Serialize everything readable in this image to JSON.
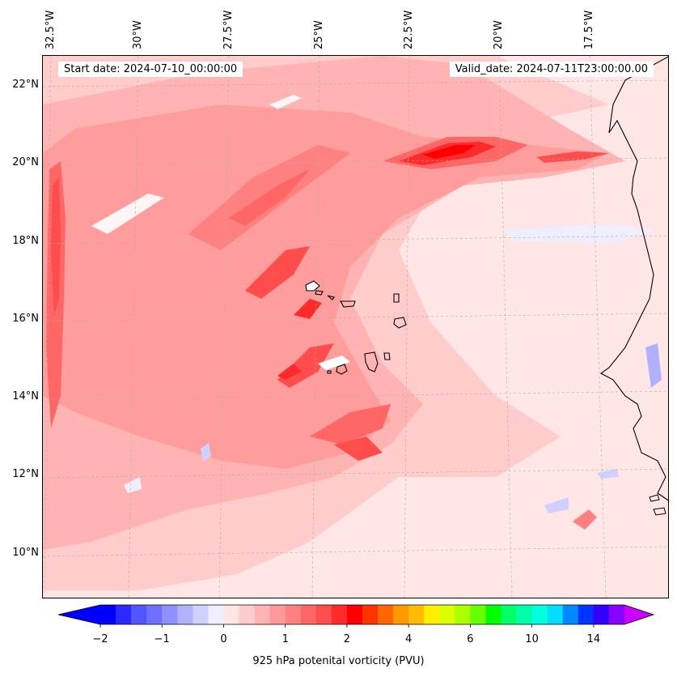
{
  "map": {
    "start_date": "Start date: 2024-07-10_00:00:00",
    "valid_date": "Valid_date: 2024-07-11T23:00:00.00",
    "lon_labels": [
      "32.5°W",
      "30°W",
      "27.5°W",
      "25°W",
      "22.5°W",
      "20°W",
      "17.5°W"
    ],
    "lat_labels": [
      "22°N",
      "20°N",
      "18°N",
      "16°N",
      "14°N",
      "12°N",
      "10°N"
    ],
    "extent": {
      "lon_min": -33.0,
      "lon_max": -15.5,
      "lat_min": 8.9,
      "lat_max": 22.8
    }
  },
  "colorbar": {
    "label": "925 hPa potenital vorticity (PVU)",
    "ticks": [
      "−2",
      "−1",
      "0",
      "1",
      "2",
      "4",
      "6",
      "10",
      "14"
    ],
    "colors": [
      "#0000ff",
      "#2a2aff",
      "#5555ff",
      "#7070ff",
      "#8f8fff",
      "#b0b0ff",
      "#d0d0ff",
      "#eeeeff",
      "#ffe6e6",
      "#ffcccc",
      "#ffb3b3",
      "#ff9999",
      "#ff8080",
      "#ff6666",
      "#ff4d4d",
      "#ff2a2a",
      "#ff0000",
      "#ff3300",
      "#ff6600",
      "#ff9900",
      "#ffbb00",
      "#ffee00",
      "#ddff00",
      "#aaff00",
      "#66ff00",
      "#00ff00",
      "#00ff66",
      "#00ffaa",
      "#00ffdd",
      "#00ddff",
      "#0088ff",
      "#0033ff",
      "#3300ff",
      "#8800ff"
    ],
    "min_color": "#0000ff",
    "max_color": "#cc00ff"
  }
}
